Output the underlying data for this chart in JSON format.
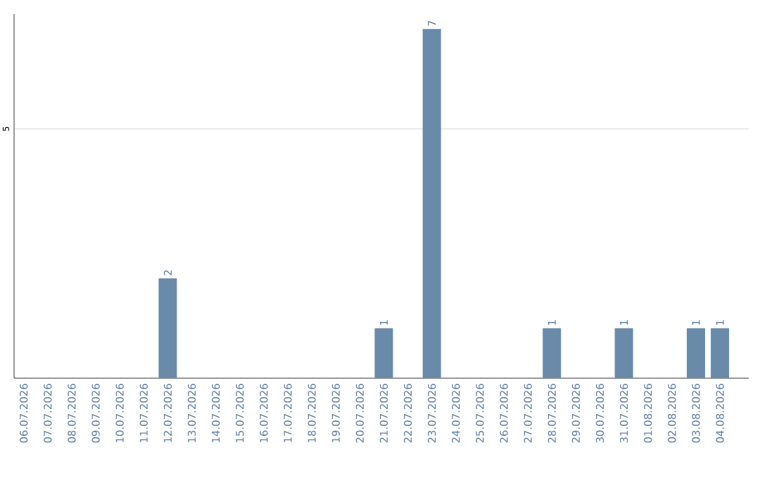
{
  "chart_data": {
    "type": "bar",
    "categories": [
      "06.07.2026",
      "07.07.2026",
      "08.07.2026",
      "09.07.2026",
      "10.07.2026",
      "11.07.2026",
      "12.07.2026",
      "13.07.2026",
      "14.07.2026",
      "15.07.2026",
      "16.07.2026",
      "17.07.2026",
      "18.07.2026",
      "19.07.2026",
      "20.07.2026",
      "21.07.2026",
      "22.07.2026",
      "23.07.2026",
      "24.07.2026",
      "25.07.2026",
      "26.07.2026",
      "27.07.2026",
      "28.07.2026",
      "29.07.2026",
      "30.07.2026",
      "31.07.2026",
      "01.08.2026",
      "02.08.2026",
      "03.08.2026",
      "04.08.2026"
    ],
    "values": [
      0,
      0,
      0,
      0,
      0,
      0,
      2,
      0,
      0,
      0,
      0,
      0,
      0,
      0,
      0,
      1,
      0,
      7,
      0,
      0,
      0,
      0,
      1,
      0,
      0,
      1,
      0,
      0,
      1,
      1
    ],
    "value_labels": [
      null,
      null,
      null,
      null,
      null,
      null,
      "2",
      null,
      null,
      null,
      null,
      null,
      null,
      null,
      null,
      "1",
      null,
      "7",
      null,
      null,
      null,
      null,
      "1",
      null,
      null,
      "1",
      null,
      null,
      "1",
      "1"
    ],
    "color": "#6a8aaa",
    "ylim": [
      0,
      7.3
    ],
    "yticks": [
      5
    ],
    "grid": "y"
  }
}
